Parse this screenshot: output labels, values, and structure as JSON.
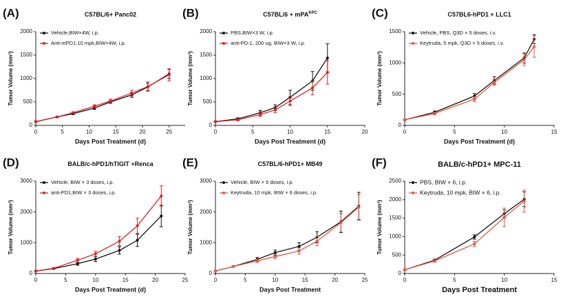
{
  "chart_data": [
    {
      "type": "line",
      "label": "(A)",
      "title": "C57BL/6+ Panc02",
      "xlabel": "Days Post Treatment (d)",
      "ylabel": "Tumor Volume (mm³)",
      "xlim": [
        0,
        28
      ],
      "xticks": [
        0,
        5,
        10,
        15,
        20,
        25
      ],
      "ylim": [
        0,
        2000
      ],
      "yticks": [
        0,
        500,
        1000,
        1500,
        2000
      ],
      "x": [
        0,
        4,
        7,
        11,
        14,
        18,
        21,
        25
      ],
      "series": [
        {
          "name": "Vehicle,BIW×4W, i.p.",
          "color": "#111111",
          "values": [
            80,
            180,
            250,
            370,
            500,
            650,
            820,
            1100
          ],
          "errors": [
            10,
            15,
            20,
            30,
            30,
            50,
            80,
            100
          ]
        },
        {
          "name": "Anti-mPD1,10 mpk,BIW×4W, i.p.",
          "color": "#e02020",
          "values": [
            80,
            180,
            270,
            410,
            520,
            690,
            830,
            1080
          ],
          "errors": [
            10,
            15,
            20,
            30,
            40,
            60,
            100,
            130
          ]
        }
      ]
    },
    {
      "type": "line",
      "label": "(B)",
      "title": "C57BL/6 + mPA",
      "title_sup": "KPC",
      "xlabel": "Days Post Treatment (d)",
      "ylabel": "Tumor Volume (mm³)",
      "xlim": [
        0,
        20
      ],
      "xticks": [
        0,
        5,
        10,
        15,
        20
      ],
      "ylim": [
        0,
        2000
      ],
      "yticks": [
        0,
        500,
        1000,
        1500,
        2000
      ],
      "x": [
        0,
        3,
        6,
        8,
        10,
        13,
        15
      ],
      "series": [
        {
          "name": "PBS,BIW×3 W, i.p.",
          "color": "#111111",
          "values": [
            80,
            140,
            270,
            380,
            600,
            950,
            1440
          ],
          "errors": [
            10,
            20,
            50,
            60,
            150,
            200,
            300
          ]
        },
        {
          "name": "anti-PD-1, 200 ug, BIW×3 W, i.p.",
          "color": "#e02020",
          "values": [
            80,
            120,
            230,
            330,
            520,
            800,
            1130
          ],
          "errors": [
            10,
            20,
            40,
            60,
            100,
            150,
            250
          ]
        }
      ]
    },
    {
      "type": "line",
      "label": "(C)",
      "title": "C57BL6-hPD1 + LLC1",
      "xlabel": "Days Post Treatment (d)",
      "ylabel": "Tumor Volume (mm³)",
      "xlim": [
        0,
        15
      ],
      "xticks": [
        0,
        5,
        10,
        15
      ],
      "ylim": [
        0,
        1500
      ],
      "yticks": [
        0,
        500,
        1000,
        1500
      ],
      "x": [
        0,
        3,
        7,
        9,
        12,
        13
      ],
      "series": [
        {
          "name": "Vehicle, PBS, Q3D × 5 doses, i.v.",
          "color": "#111111",
          "values": [
            90,
            210,
            470,
            720,
            1080,
            1380
          ],
          "errors": [
            10,
            20,
            40,
            60,
            80,
            70
          ]
        },
        {
          "name": "Keytruda, 5 mpk, Q3D × 5 doses, i.v.",
          "color": "#e8553d",
          "values": [
            90,
            190,
            420,
            690,
            1050,
            1260
          ],
          "errors": [
            10,
            20,
            40,
            50,
            90,
            170
          ]
        }
      ]
    },
    {
      "type": "line",
      "label": "(D)",
      "title": "BALB/c-hPD1/hTIGIT +Renca",
      "xlabel": "Days Post Treatment (d)",
      "ylabel": "Tumor Volume (mm³)",
      "xlim": [
        0,
        25
      ],
      "xticks": [
        0,
        5,
        10,
        15,
        20,
        25
      ],
      "ylim": [
        0,
        3000
      ],
      "yticks": [
        0,
        1000,
        2000,
        3000
      ],
      "x": [
        0,
        3,
        7,
        10,
        14,
        17,
        21
      ],
      "series": [
        {
          "name": "Vehicle, BIW × 3 doses, i.p.",
          "color": "#111111",
          "values": [
            80,
            160,
            320,
            470,
            750,
            1080,
            1870
          ],
          "errors": [
            10,
            20,
            50,
            80,
            120,
            200,
            350
          ]
        },
        {
          "name": "anti-PD1,BIW × 3 doses, i.p.",
          "color": "#e02020",
          "values": [
            80,
            170,
            430,
            640,
            1050,
            1550,
            2520
          ],
          "errors": [
            10,
            20,
            60,
            80,
            150,
            250,
            330
          ]
        }
      ]
    },
    {
      "type": "line",
      "label": "(E)",
      "title": "C57BL/6-hPD1+ MB49",
      "xlabel": "Days Post Treatment",
      "ylabel": "Tumor Volume (mm³)",
      "xlim": [
        0,
        25
      ],
      "xticks": [
        0,
        5,
        10,
        15,
        20,
        25
      ],
      "ylim": [
        0,
        3000
      ],
      "yticks": [
        0,
        1000,
        2000,
        3000
      ],
      "x": [
        0,
        3,
        7,
        10,
        14,
        17,
        21,
        24
      ],
      "series": [
        {
          "name": "Vehicle, BIW × 6 doses, i.p.",
          "color": "#111111",
          "values": [
            80,
            230,
            460,
            680,
            880,
            1180,
            1680,
            2190
          ],
          "errors": [
            10,
            20,
            60,
            80,
            120,
            180,
            350,
            450
          ]
        },
        {
          "name": "Keytruda, 10 mpk, BIW × 6 doses, i.p.",
          "color": "#e8553d",
          "values": [
            80,
            230,
            410,
            550,
            730,
            1050,
            1650,
            2160
          ],
          "errors": [
            10,
            20,
            50,
            70,
            100,
            150,
            300,
            400
          ]
        }
      ]
    },
    {
      "type": "line",
      "label": "(F)",
      "title": "BALB/c-hPD1+ MPC-11",
      "xlabel": "Days Post Treatment",
      "ylabel": "Tumor Volume (mm³)",
      "xlim": [
        0,
        15
      ],
      "xticks": [
        0,
        5,
        10,
        15
      ],
      "ylim": [
        0,
        2500
      ],
      "yticks": [
        0,
        500,
        1000,
        1500,
        2000,
        2500
      ],
      "x": [
        0,
        3,
        7,
        10,
        12
      ],
      "series": [
        {
          "name": "PBS,  BIW × 6,  i.p.",
          "color": "#111111",
          "values": [
            100,
            360,
            990,
            1620,
            2010
          ],
          "errors": [
            10,
            30,
            60,
            100,
            200
          ]
        },
        {
          "name": "Keytruda, 10 mpk,  BIW × 6,  i.p.",
          "color": "#e8553d",
          "values": [
            100,
            340,
            800,
            1520,
            1960
          ],
          "errors": [
            10,
            30,
            70,
            250,
            300
          ]
        }
      ]
    }
  ]
}
